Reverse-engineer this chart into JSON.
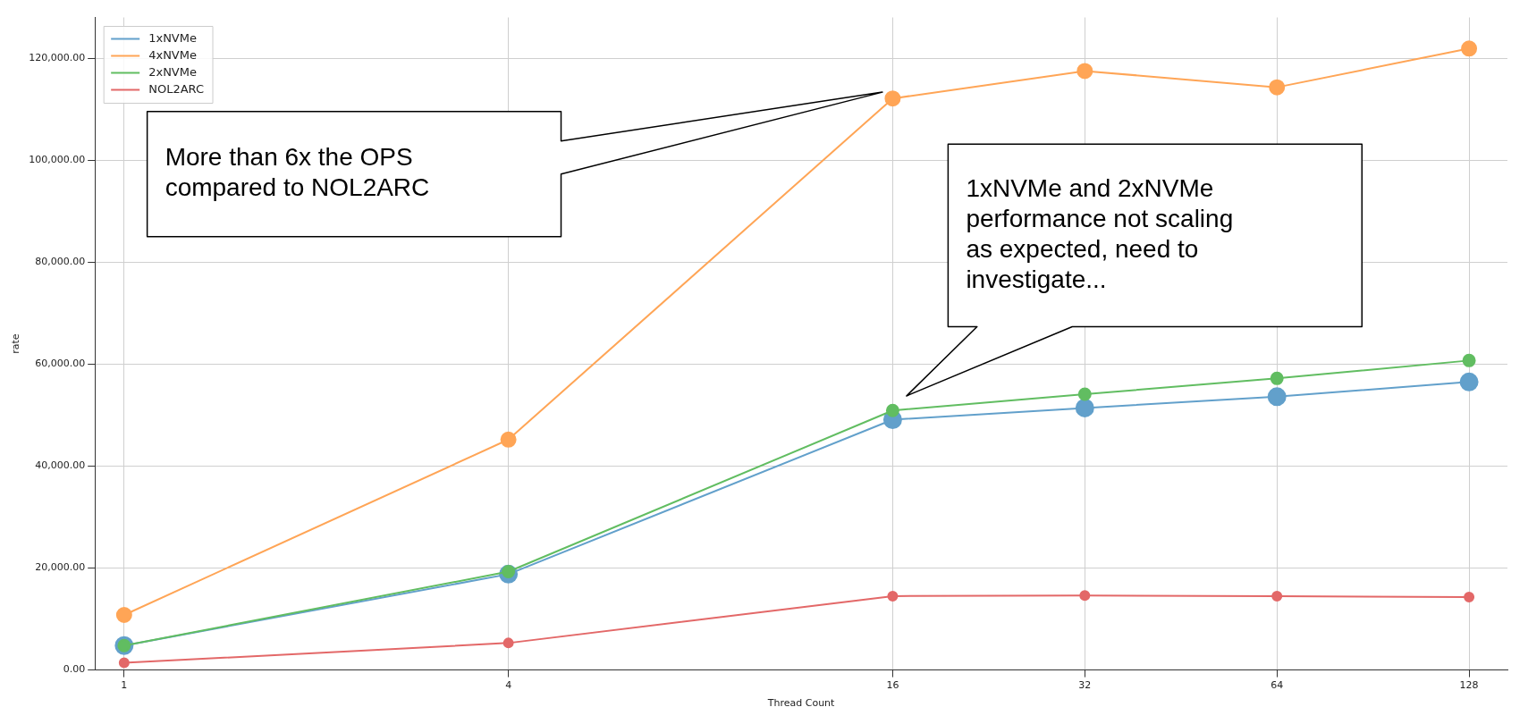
{
  "chart_data": {
    "type": "line",
    "xlabel": "Thread Count",
    "ylabel": "rate",
    "x": [
      1,
      4,
      16,
      32,
      64,
      128
    ],
    "series": [
      {
        "name": "1xNVMe",
        "color": "#62a0cb",
        "values": [
          4800,
          18800,
          49100,
          51400,
          53600,
          56500
        ]
      },
      {
        "name": "4xNVMe",
        "color": "#ffa556",
        "values": [
          10800,
          45200,
          112100,
          117500,
          114300,
          121900
        ]
      },
      {
        "name": "2xNVMe",
        "color": "#61bd61",
        "values": [
          4800,
          19300,
          50900,
          54100,
          57200,
          60700
        ]
      },
      {
        "name": "NOL2ARC",
        "color": "#e36868",
        "values": [
          1400,
          5300,
          14500,
          14600,
          14500,
          14300
        ]
      }
    ],
    "log": "x",
    "xlim": [
      0.9,
      147
    ],
    "xticks": [
      1,
      4,
      16,
      32,
      64,
      128
    ],
    "ylim": [
      0,
      128000
    ],
    "yticks": [
      {
        "value": 0,
        "label": "0.00"
      },
      {
        "value": 20000,
        "label": "20,000.00"
      },
      {
        "value": 40000,
        "label": "40,000.00"
      },
      {
        "value": 60000,
        "label": "60,000.00"
      },
      {
        "value": 80000,
        "label": "80,000.00"
      },
      {
        "value": 100000,
        "label": "100,000.00"
      },
      {
        "value": 120000,
        "label": "120,000.00"
      }
    ],
    "grid": true,
    "legend": "top left",
    "marker": "circle",
    "line_style": "solid",
    "annotations": [
      "More than 6x the OPS\ncompared to NOL2ARC",
      "1xNVMe and 2xNVMe\nperformance not scaling\nas expected, need to\ninvestigate..."
    ]
  }
}
